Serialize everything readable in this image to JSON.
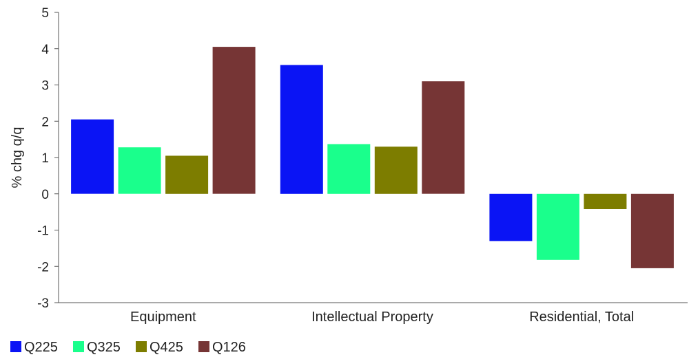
{
  "chart_data": {
    "type": "bar",
    "title": "",
    "xlabel": "",
    "ylabel": "% chg q/q",
    "ylim": [
      -3,
      5
    ],
    "yticks": [
      5,
      4,
      3,
      2,
      1,
      0,
      -1,
      -2,
      -3
    ],
    "grid": false,
    "legend_position": "bottom-left",
    "categories": [
      "Equipment",
      "Intellectual Property",
      "Residential, Total"
    ],
    "series": [
      {
        "name": "Q225",
        "color": "#0a14f5",
        "values": [
          2.05,
          3.55,
          -1.3
        ]
      },
      {
        "name": "Q325",
        "color": "#1aff8c",
        "values": [
          1.28,
          1.37,
          -1.82
        ]
      },
      {
        "name": "Q425",
        "color": "#7d7d00",
        "values": [
          1.05,
          1.3,
          -0.42
        ]
      },
      {
        "name": "Q126",
        "color": "#763535",
        "values": [
          4.05,
          3.1,
          -2.05
        ]
      }
    ]
  }
}
